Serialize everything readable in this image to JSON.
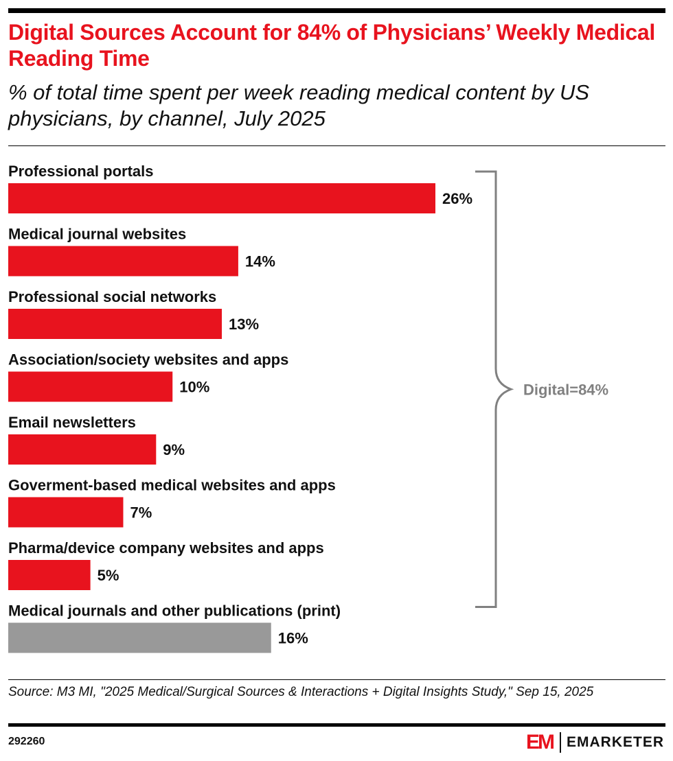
{
  "header": {
    "title": "Digital Sources Account for 84% of Physicians’ Weekly Medical Reading Time",
    "subtitle": "% of total time spent per week reading medical content by US physicians, by channel, July 2025"
  },
  "chart_data": {
    "type": "bar",
    "orientation": "horizontal",
    "categories": [
      "Professional portals",
      "Medical journal websites",
      "Professional social networks",
      "Association/society websites and apps",
      "Email newsletters",
      "Goverment-based medical websites and apps",
      "Pharma/device company websites and apps",
      "Medical journals and other publications (print)"
    ],
    "values": [
      26,
      14,
      13,
      10,
      9,
      7,
      5,
      16
    ],
    "value_labels": [
      "26%",
      "14%",
      "13%",
      "10%",
      "9%",
      "7%",
      "5%",
      "16%"
    ],
    "bar_colors": [
      "#e8131e",
      "#e8131e",
      "#e8131e",
      "#e8131e",
      "#e8131e",
      "#e8131e",
      "#e8131e",
      "#999999"
    ],
    "unit": "%",
    "xlim": [
      0,
      26
    ],
    "grid": false,
    "bracket": {
      "label": "Digital=84%",
      "covers_categories": [
        0,
        6
      ],
      "color": "#808080"
    }
  },
  "footer": {
    "source": "Source: M3 MI, \"2025 Medical/Surgical Sources & Interactions + Digital Insights Study,\" Sep 15, 2025",
    "chart_id": "292260",
    "brand_mark": "EM",
    "brand_name": "EMARKETER"
  },
  "colors": {
    "accent": "#e8131e",
    "print_bar": "#999999",
    "bracket": "#808080"
  }
}
